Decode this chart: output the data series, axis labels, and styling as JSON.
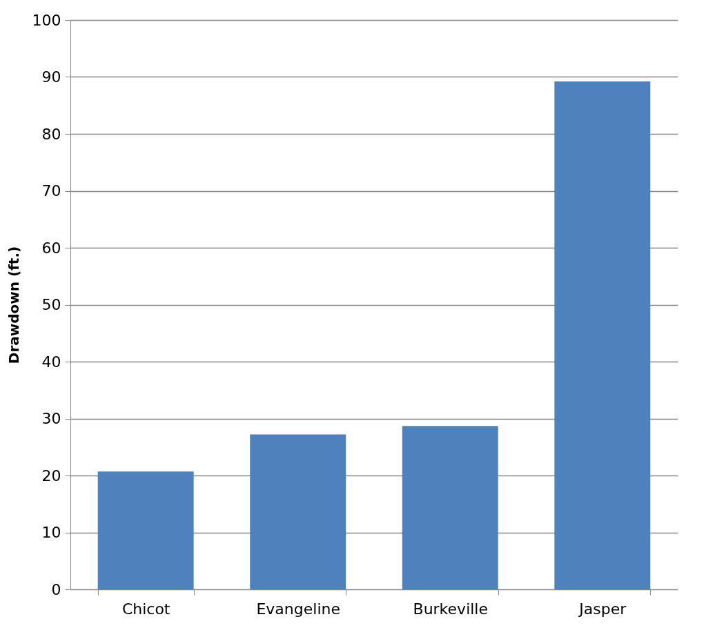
{
  "chart_data": {
    "type": "bar",
    "ylabel": "Drawdown (ft.)",
    "categories": [
      "Chicot",
      "Evangeline",
      "Burkeville",
      "Jasper"
    ],
    "values": [
      20.7,
      27.2,
      28.7,
      89.2
    ],
    "color": "#4f81bd",
    "ylim": [
      0,
      100
    ],
    "yticks": [
      0,
      10,
      20,
      30,
      40,
      50,
      60,
      70,
      80,
      90,
      100
    ],
    "grid": "y"
  }
}
